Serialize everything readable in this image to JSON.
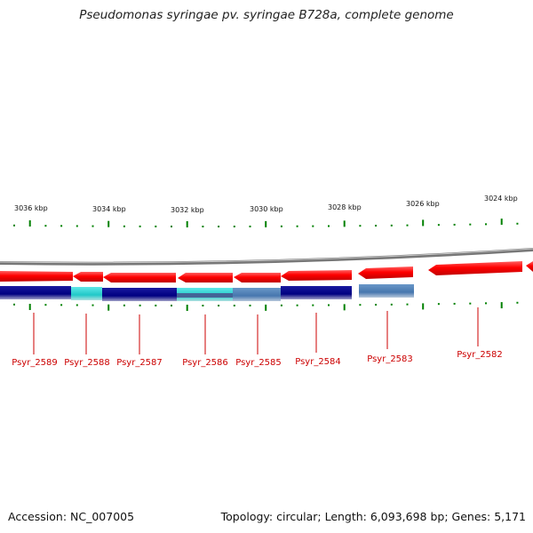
{
  "header": {
    "title": "Pseudomonas syringae pv. syringae B728a, complete genome"
  },
  "footer": {
    "accession": "Accession: NC_007005",
    "topology": "Topology: circular; Length: 6,093,698 bp; Genes: 5,171"
  },
  "scale": {
    "unit": "kbp",
    "labels": [
      "3036 kbp",
      "3034 kbp",
      "3032 kbp",
      "3030 kbp",
      "3028 kbp",
      "3026 kbp",
      "3024 kbp"
    ]
  },
  "colors": {
    "forward_gene": "#ff1010",
    "reverse_gene": "#000080",
    "highlight_cyan": "#20d0d0",
    "highlight_steel": "#4a7fb5",
    "backbone": "#888888",
    "tick": "#008000",
    "label": "#cc0000"
  },
  "genes": [
    {
      "id": "Psyr_2589",
      "strand": "reverse",
      "color": "reverse_gene"
    },
    {
      "id": "Psyr_2588",
      "strand": "reverse",
      "color": "highlight_cyan"
    },
    {
      "id": "Psyr_2587",
      "strand": "reverse",
      "color": "reverse_gene"
    },
    {
      "id": "Psyr_2586",
      "strand": "reverse",
      "color": "highlight_cyan"
    },
    {
      "id": "Psyr_2585",
      "strand": "reverse",
      "color": "highlight_steel"
    },
    {
      "id": "Psyr_2584",
      "strand": "reverse",
      "color": "reverse_gene"
    },
    {
      "id": "Psyr_2583",
      "strand": "reverse",
      "color": "highlight_steel"
    },
    {
      "id": "Psyr_2582",
      "strand": "forward",
      "color": "forward_gene"
    }
  ]
}
